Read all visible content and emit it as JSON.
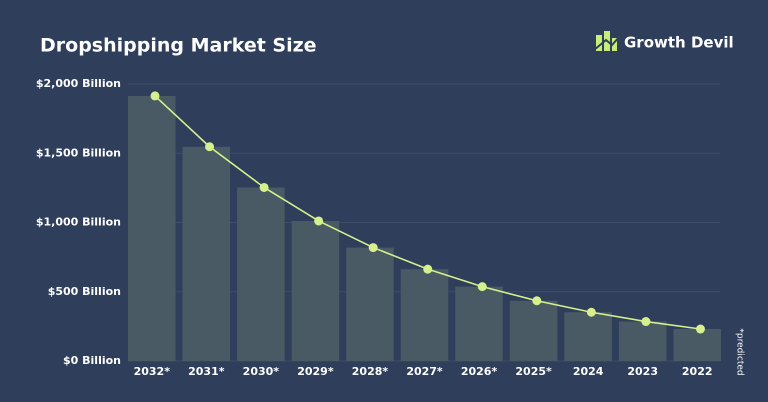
{
  "chart_data": {
    "type": "bar-line",
    "title": "Dropshipping Market Size",
    "brand": "Growth Devil",
    "note": "*predicted",
    "categories": [
      "2032*",
      "2031*",
      "2030*",
      "2029*",
      "2028*",
      "2027*",
      "2026*",
      "2025*",
      "2024",
      "2023",
      "2022"
    ],
    "values": [
      1914,
      1547,
      1253,
      1011,
      819,
      663,
      537,
      435,
      352,
      285,
      231
    ],
    "bar_color": "#4a5a64",
    "line_color": "#d5f08c",
    "ylim": [
      0,
      2000
    ],
    "yticks": [
      {
        "value": 0,
        "label": "$0 Billion"
      },
      {
        "value": 500,
        "label": "$500 Billion"
      },
      {
        "value": 1000,
        "label": "$1,000 Billion"
      },
      {
        "value": 1500,
        "label": "$1,500 Billion"
      },
      {
        "value": 2000,
        "label": "$2,000 Billion"
      }
    ],
    "grid": true
  }
}
